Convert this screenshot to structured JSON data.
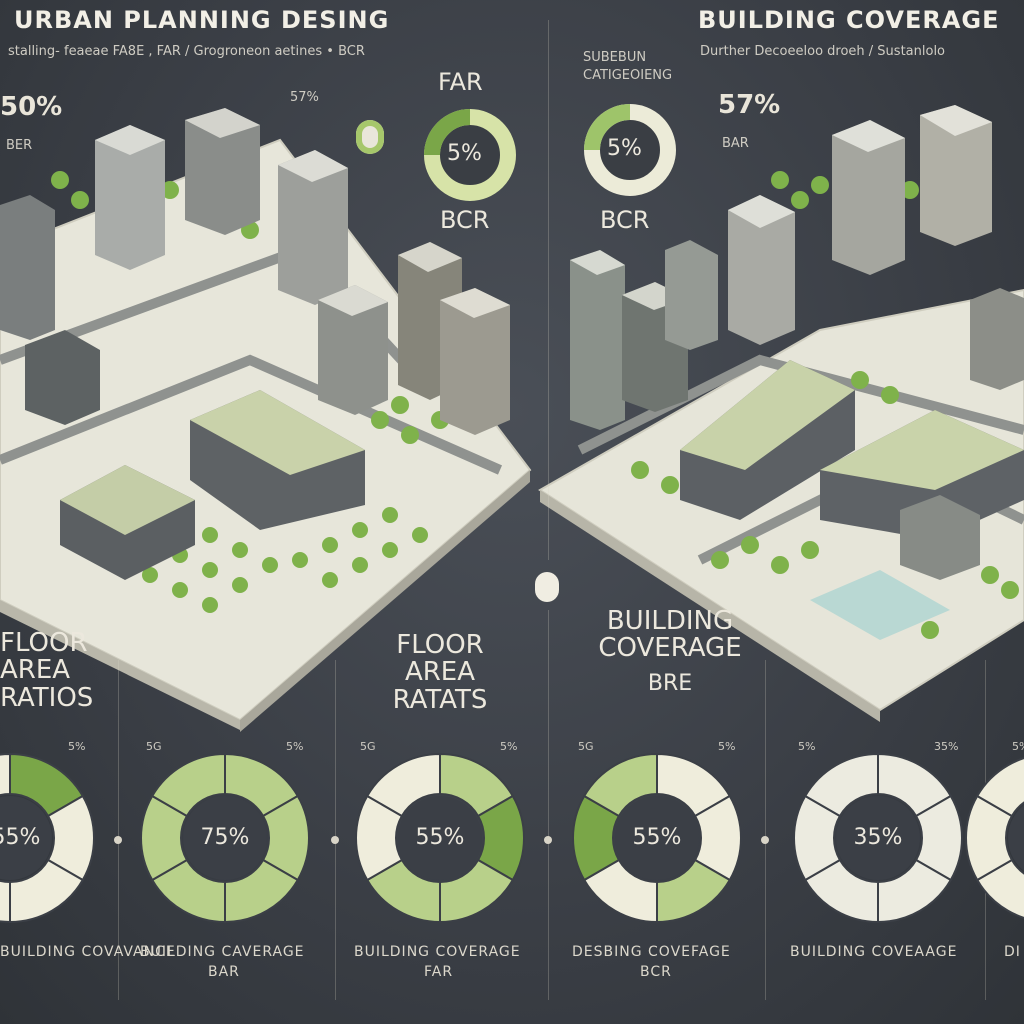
{
  "left_panel": {
    "title": "URBAN PLANNING DESING",
    "subtitle": "stalling- feaeae FA8E , FAR / Grogroneon aetines • BCR",
    "stat": "50%",
    "stat_label": "BER",
    "small_stat": "57%",
    "ring_top_label": "FAR",
    "ring_center": "5%",
    "ring_bottom_label": "BCR"
  },
  "right_panel": {
    "title": "BUILDING COVERAGE",
    "subtitle": "Durther Decoeeloo droeh / Sustanlolo",
    "small_label_1": "SUBEBUN",
    "small_label_2": "CATIGEOIENG",
    "ring_center": "5%",
    "ring_bottom_label": "BCR",
    "stat": "57%",
    "stat_label": "BAR"
  },
  "mid_labels": {
    "left": "FLOOR\nAREA\nRATIOS",
    "center": "FLOOR\nAREA\nRATATS",
    "right_title": "BUILDING\nCOVERAGE",
    "right_sub": "BRE"
  },
  "donuts": [
    {
      "center": "55%",
      "pct_left": "",
      "pct_right": "5%",
      "footer": "BUILDING COVAVANCE",
      "footer2": ""
    },
    {
      "center": "75%",
      "pct_left": "5G",
      "pct_right": "5%",
      "footer": "BUILDING CAVERAGE",
      "footer2": "BAR"
    },
    {
      "center": "55%",
      "pct_left": "5G",
      "pct_right": "5%",
      "footer": "BUILDING COVERAGE",
      "footer2": "FAR"
    },
    {
      "center": "55%",
      "pct_left": "5G",
      "pct_right": "5%",
      "footer": "DESBING COVEFAGE",
      "footer2": "BCR"
    },
    {
      "center": "35%",
      "pct_left": "5%",
      "pct_right": "35%",
      "footer": "BUILDING COVEAAGE",
      "footer2": ""
    },
    {
      "center": "",
      "pct_left": "5%",
      "pct_right": "",
      "footer": "DI",
      "footer2": ""
    }
  ],
  "colors": {
    "background": "#3b3f46",
    "green_dark": "#7aa648",
    "green_light": "#b8d08a",
    "cream": "#efeddc",
    "ground": "#ecebe0"
  }
}
